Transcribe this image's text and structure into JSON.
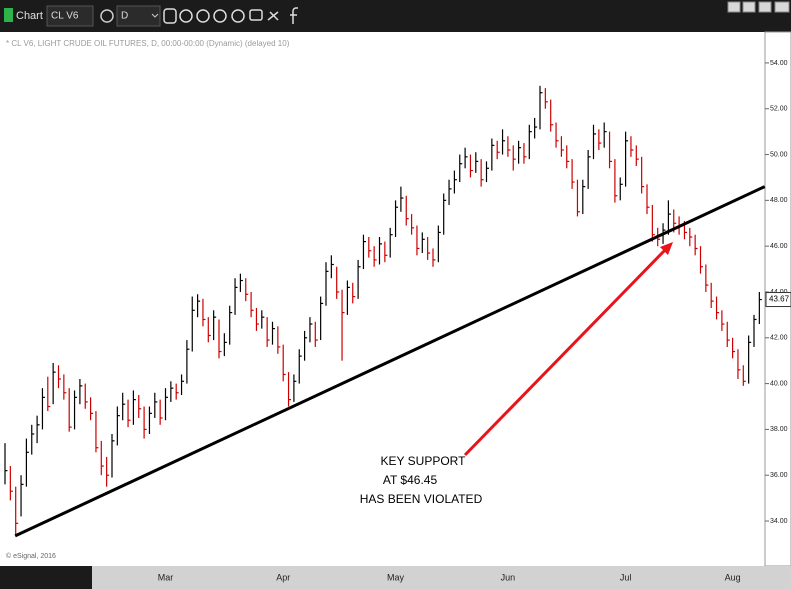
{
  "window": {
    "title": "Chart",
    "symbol": "CL V6",
    "interval": "D"
  },
  "chart_data": {
    "type": "hlc",
    "subtitle": "* CL V6, LIGHT CRUDE OIL FUTURES, D, 00:00-00:00 (Dynamic) (delayed 10)",
    "copyright": "© eSignal, 2016",
    "categories": [
      null,
      null,
      null,
      null,
      null,
      null,
      null,
      null,
      null,
      null,
      null,
      null,
      null,
      null,
      null,
      null,
      null,
      null,
      null,
      null,
      null,
      null,
      null,
      null,
      null,
      null,
      null,
      null,
      null,
      null,
      "Mar",
      null,
      null,
      null,
      null,
      null,
      null,
      null,
      null,
      null,
      null,
      null,
      null,
      null,
      null,
      null,
      null,
      null,
      null,
      null,
      null,
      null,
      "Apr",
      null,
      null,
      null,
      null,
      null,
      null,
      null,
      null,
      null,
      null,
      null,
      null,
      null,
      null,
      null,
      null,
      null,
      null,
      null,
      null,
      "May",
      null,
      null,
      null,
      null,
      null,
      null,
      null,
      null,
      null,
      null,
      null,
      null,
      null,
      null,
      null,
      null,
      null,
      null,
      null,
      null,
      "Jun",
      null,
      null,
      null,
      null,
      null,
      null,
      null,
      null,
      null,
      null,
      null,
      null,
      null,
      null,
      null,
      null,
      null,
      null,
      null,
      null,
      null,
      "Jul",
      null,
      null,
      null,
      null,
      null,
      null,
      null,
      null,
      null,
      null,
      null,
      null,
      null,
      null,
      null,
      null,
      null,
      null,
      null,
      "Aug",
      null,
      null,
      null,
      null,
      null
    ],
    "high": [
      37.4,
      36.4,
      35.5,
      36.0,
      37.6,
      38.2,
      38.6,
      39.8,
      40.3,
      40.9,
      40.8,
      40.4,
      39.8,
      39.7,
      40.2,
      40.0,
      39.4,
      38.8,
      37.5,
      36.8,
      37.8,
      39.0,
      39.6,
      39.3,
      39.7,
      39.5,
      39.0,
      39.0,
      39.6,
      39.3,
      39.8,
      40.1,
      40.0,
      40.4,
      41.9,
      43.8,
      43.9,
      43.7,
      42.9,
      43.2,
      42.8,
      42.2,
      43.4,
      44.6,
      44.8,
      44.6,
      44.0,
      43.3,
      43.2,
      42.9,
      42.7,
      42.5,
      41.7,
      40.5,
      40.4,
      41.5,
      42.3,
      42.9,
      42.7,
      43.8,
      45.3,
      45.6,
      45.1,
      44.1,
      44.5,
      44.4,
      45.4,
      46.5,
      46.4,
      46.0,
      46.4,
      46.2,
      46.8,
      48.0,
      48.6,
      48.2,
      47.4,
      46.9,
      46.6,
      46.4,
      45.9,
      46.9,
      48.3,
      48.9,
      49.3,
      50.0,
      50.3,
      50.0,
      50.1,
      49.8,
      49.7,
      50.7,
      50.6,
      51.1,
      50.8,
      50.4,
      50.6,
      50.5,
      51.3,
      51.6,
      53.0,
      52.9,
      52.4,
      51.4,
      50.8,
      50.4,
      49.8,
      48.9,
      48.9,
      50.2,
      51.3,
      51.1,
      51.4,
      51.0,
      49.8,
      49.0,
      51.0,
      50.8,
      50.4,
      49.9,
      48.7,
      47.8,
      46.8,
      47.0,
      48.0,
      47.6,
      47.3,
      47.1,
      46.8,
      46.5,
      46.0,
      45.2,
      44.4,
      43.8,
      43.2,
      42.7,
      42.0,
      41.5,
      40.8,
      42.1,
      43.0,
      44.0
    ],
    "low": [
      35.6,
      34.9,
      33.4,
      34.2,
      35.5,
      36.9,
      37.4,
      38.0,
      38.8,
      39.1,
      39.8,
      39.3,
      37.9,
      38.0,
      39.1,
      38.9,
      38.4,
      37.0,
      36.0,
      35.5,
      35.9,
      37.3,
      38.4,
      38.1,
      38.2,
      38.5,
      37.6,
      37.8,
      38.5,
      38.2,
      38.4,
      39.2,
      39.3,
      39.5,
      40.0,
      41.4,
      42.9,
      42.5,
      41.8,
      41.9,
      41.1,
      41.2,
      41.7,
      43.0,
      44.0,
      43.6,
      42.9,
      42.3,
      42.4,
      41.6,
      41.7,
      41.3,
      40.1,
      39.0,
      39.2,
      40.0,
      41.0,
      41.8,
      41.6,
      41.9,
      43.4,
      44.6,
      43.7,
      41.0,
      43.0,
      43.5,
      43.7,
      45.0,
      45.5,
      45.1,
      45.2,
      45.3,
      45.5,
      46.4,
      47.5,
      46.9,
      46.5,
      45.6,
      45.7,
      45.4,
      45.1,
      45.3,
      46.5,
      47.8,
      48.3,
      48.8,
      49.4,
      49.0,
      49.2,
      48.6,
      48.8,
      49.3,
      49.8,
      50.0,
      49.9,
      49.3,
      49.6,
      49.6,
      49.8,
      50.7,
      51.1,
      52.0,
      51.0,
      50.3,
      49.9,
      49.4,
      48.5,
      47.3,
      47.4,
      48.5,
      49.8,
      50.2,
      50.3,
      49.4,
      47.9,
      48.0,
      48.6,
      49.9,
      49.5,
      48.3,
      47.4,
      46.2,
      46.0,
      46.1,
      46.5,
      46.6,
      46.5,
      46.3,
      46.0,
      45.6,
      44.8,
      44.0,
      43.3,
      42.8,
      42.3,
      41.6,
      41.1,
      40.2,
      39.9,
      40.0,
      41.6,
      42.6
    ],
    "close": [
      36.2,
      35.3,
      33.9,
      35.6,
      37.0,
      37.8,
      38.2,
      39.4,
      39.0,
      40.5,
      40.2,
      39.6,
      38.1,
      39.4,
      39.9,
      39.2,
      38.7,
      37.2,
      36.4,
      36.0,
      37.5,
      38.6,
      39.1,
      38.4,
      39.3,
      38.9,
      38.0,
      38.7,
      39.2,
      38.5,
      39.4,
      39.8,
      39.6,
      40.1,
      41.5,
      43.2,
      43.6,
      42.8,
      42.1,
      42.9,
      41.4,
      41.8,
      43.1,
      44.2,
      44.5,
      43.9,
      43.2,
      42.6,
      42.9,
      41.9,
      42.4,
      41.6,
      40.4,
      39.3,
      40.1,
      41.2,
      42.0,
      42.6,
      41.9,
      43.5,
      44.9,
      45.2,
      44.0,
      43.1,
      44.2,
      43.8,
      45.1,
      46.2,
      45.8,
      45.4,
      46.1,
      45.6,
      46.5,
      47.7,
      48.1,
      47.2,
      46.8,
      45.9,
      46.3,
      45.7,
      45.4,
      46.6,
      48.0,
      48.5,
      48.9,
      49.6,
      49.9,
      49.3,
      49.7,
      48.9,
      49.4,
      50.4,
      50.1,
      50.6,
      50.2,
      49.8,
      50.3,
      49.9,
      51.0,
      51.2,
      52.7,
      52.3,
      51.3,
      50.6,
      50.2,
      49.7,
      48.8,
      47.5,
      48.6,
      49.9,
      50.9,
      50.5,
      51.0,
      49.7,
      48.2,
      48.7,
      50.6,
      50.2,
      49.8,
      48.6,
      47.7,
      46.5,
      46.3,
      46.7,
      47.4,
      47.0,
      46.9,
      46.6,
      46.4,
      45.9,
      45.1,
      44.3,
      43.6,
      43.1,
      42.6,
      41.9,
      41.4,
      40.6,
      40.1,
      41.8,
      42.8,
      43.67
    ],
    "up_color": "#000000",
    "down_color": "#cc0000",
    "ylim": [
      32.08,
      55.35
    ],
    "yticks": [
      {
        "value": 34,
        "label": "34.00"
      },
      {
        "value": 36,
        "label": "36.00"
      },
      {
        "value": 38,
        "label": "38.00"
      },
      {
        "value": 40,
        "label": "40.00"
      },
      {
        "value": 42,
        "label": "42.00"
      },
      {
        "value": 44,
        "label": "44.00"
      },
      {
        "value": 46,
        "label": "46.00"
      },
      {
        "value": 48,
        "label": "48.00"
      },
      {
        "value": 50,
        "label": "50.00"
      },
      {
        "value": 52,
        "label": "52.00"
      },
      {
        "value": 54,
        "label": "54.00"
      }
    ],
    "grid": false,
    "trendline": {
      "x": [
        1.9,
        142
      ],
      "values": [
        33.35,
        48.6
      ],
      "color": "#000000"
    },
    "annotation": {
      "lines": [
        "KEY SUPPORT",
        "AT  $46.45",
        "HAS BEEN VIOLATED"
      ],
      "arrow_color": "#e8141b"
    }
  }
}
